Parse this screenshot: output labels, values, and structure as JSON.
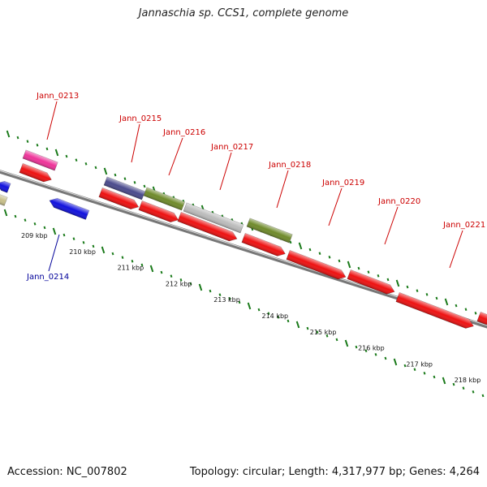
{
  "title": "Jannaschia sp. CCS1, complete genome",
  "footer": {
    "accession": "Accession: NC_007802",
    "summary": "Topology: circular; Length: 4,317,977 bp; Genes: 4,264"
  },
  "colors": {
    "forward_label": "#cc0000",
    "reverse_label": "#000099",
    "cds": "#ee1111",
    "pink": "#ee3399",
    "blue": "#1111dd",
    "navy": "#4a4a8c",
    "olive": "#6f8a2a",
    "gray": "#bbbbbb",
    "tan": "#c8c08a",
    "tick": "#1a7a1a",
    "backbone": "#777777"
  },
  "scale_labels": [
    "209 kbp",
    "210 kbp",
    "211 kbp",
    "212 kbp",
    "213 kbp",
    "214 kbp",
    "215 kbp",
    "216 kbp",
    "217 kbp",
    "218 kbp"
  ],
  "gene_labels": [
    {
      "text": "Jann_0213",
      "strand": "forward"
    },
    {
      "text": "Jann_0215",
      "strand": "forward"
    },
    {
      "text": "Jann_0216",
      "strand": "forward"
    },
    {
      "text": "Jann_0217",
      "strand": "forward"
    },
    {
      "text": "Jann_0218",
      "strand": "forward"
    },
    {
      "text": "Jann_0219",
      "strand": "forward"
    },
    {
      "text": "Jann_0220",
      "strand": "forward"
    },
    {
      "text": "Jann_0221",
      "strand": "forward"
    },
    {
      "text": "Jann_0214",
      "strand": "reverse"
    }
  ]
}
